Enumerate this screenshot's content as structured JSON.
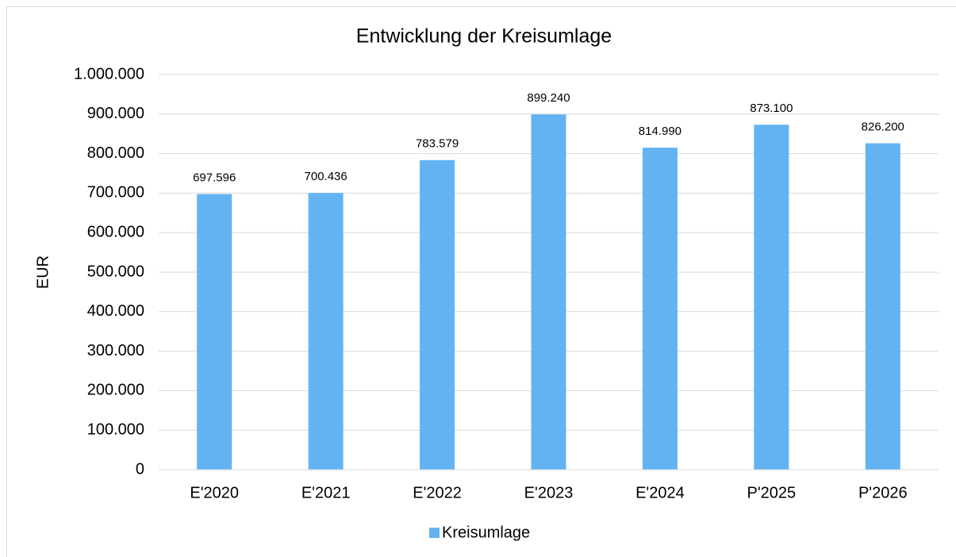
{
  "chart_data": {
    "type": "bar",
    "title": "Entwicklung der Kreisumlage",
    "y_label": "EUR",
    "categories": [
      "E'2020",
      "E'2021",
      "E'2022",
      "E'2023",
      "E'2024",
      "P'2025",
      "P'2026"
    ],
    "series": [
      {
        "name": "Kreisumlage",
        "color": "#63b3f3",
        "values": [
          697596,
          700436,
          783579,
          899240,
          814990,
          873100,
          826200
        ],
        "value_labels": [
          "697.596",
          "700.436",
          "783.579",
          "899.240",
          "814.990",
          "873.100",
          "826.200"
        ]
      }
    ],
    "ylim": [
      0,
      1000000
    ],
    "yticks": [
      0,
      {
        "value": 100000,
        "label": "100.000"
      },
      {
        "value": 200000,
        "label": "200.000"
      },
      {
        "value": 300000,
        "label": "300.000"
      },
      {
        "value": 400000,
        "label": "400.000"
      },
      {
        "value": 500000,
        "label": "500.000"
      },
      {
        "value": 600000,
        "label": "600.000"
      },
      {
        "value": 700000,
        "label": "700.000"
      },
      {
        "value": 800000,
        "label": "800.000"
      },
      {
        "value": 900000,
        "label": "900.000"
      },
      {
        "value": 1000000,
        "label": "1.000.000"
      }
    ],
    "grid": true,
    "legend": "bottom"
  }
}
